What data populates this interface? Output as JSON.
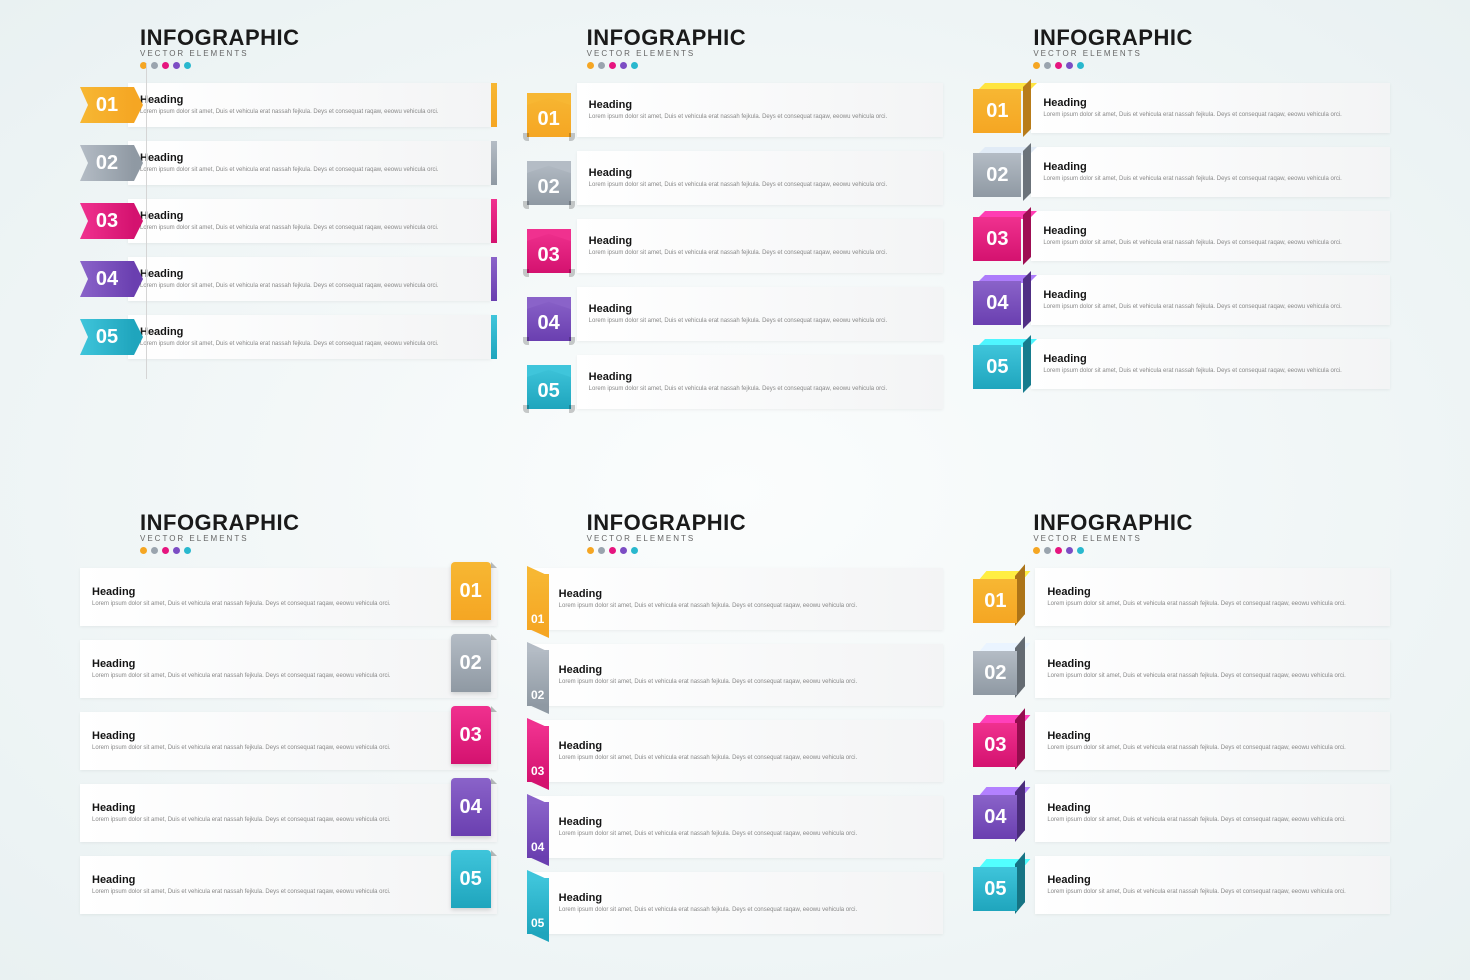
{
  "title": "INFOGRAPHIC",
  "subtitle": "VECTOR ELEMENTS",
  "dot_colors": [
    "#f5a623",
    "#9aa4ae",
    "#e6157f",
    "#7c4dc4",
    "#29b8ce"
  ],
  "heading_text": "Heading",
  "body_text": "Lorem ipsum dolor sit amet, Duis et vehicula erat nassah fejkula. Deys et consequat raqaw, eeowu vehicula orci.",
  "items": [
    {
      "num": "01",
      "c1": "#f7b733",
      "c2": "#f5a623"
    },
    {
      "num": "02",
      "c1": "#b4bcc5",
      "c2": "#8f99a3"
    },
    {
      "num": "03",
      "c1": "#f0318f",
      "c2": "#d4126f"
    },
    {
      "num": "04",
      "c1": "#8a63c9",
      "c2": "#6a3fb0"
    },
    {
      "num": "05",
      "c1": "#3fc5db",
      "c2": "#1fa5bd"
    }
  ],
  "title_fontsize": 22,
  "subtitle_fontsize": 8,
  "heading_fontsize": 11,
  "body_fontsize": 6,
  "num_fontsize": 20,
  "card_bg_from": "#ffffff",
  "card_bg_to": "#f3f4f5",
  "page_bg_inner": "#fbfdfd",
  "page_bg_outer": "#e9f1f2",
  "heading_color": "#151515",
  "body_color": "#888888",
  "num_color": "#ffffff"
}
